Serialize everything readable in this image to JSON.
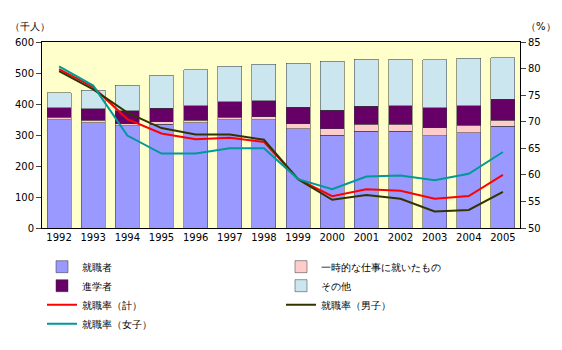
{
  "chart_data": {
    "type": "bar",
    "stacked": true,
    "grid": false,
    "legend": "bottom",
    "y_label": "（千人）",
    "y2_label": "（%）",
    "categories": [
      "1992",
      "1993",
      "1994",
      "1995",
      "1996",
      "1997",
      "1998",
      "1999",
      "2000",
      "2001",
      "2002",
      "2003",
      "2004",
      "2005"
    ],
    "ylim": [
      0,
      600
    ],
    "yticks": [
      0,
      100,
      200,
      300,
      400,
      500,
      600
    ],
    "y2lim": [
      50,
      85
    ],
    "y2ticks": [
      50,
      55,
      60,
      65,
      70,
      75,
      80,
      85
    ],
    "series": [
      {
        "name": "就職者",
        "type": "bar",
        "color": "#9999ff",
        "values": [
          350,
          340,
          330,
          335,
          340,
          350,
          350,
          320,
          300,
          312,
          312,
          298,
          307,
          328
        ]
      },
      {
        "name": "一時的な仕事に就いたもの",
        "type": "bar",
        "color": "#ffcccc",
        "values": [
          7,
          7,
          7,
          7,
          8,
          8,
          9,
          17,
          20,
          22,
          22,
          26,
          25,
          20
        ]
      },
      {
        "name": "進学者",
        "type": "bar",
        "color": "#660066",
        "values": [
          31,
          38,
          41,
          44,
          47,
          49,
          51,
          53,
          60,
          59,
          61,
          64,
          63,
          67
        ]
      },
      {
        "name": "その他",
        "type": "bar",
        "color": "#cce6f0",
        "values": [
          49,
          60,
          82,
          107,
          115,
          115,
          118,
          142,
          158,
          152,
          150,
          155,
          153,
          135
        ]
      },
      {
        "name": "就職率（計）",
        "type": "line",
        "axis": "y2",
        "color": "#ff0000",
        "values": [
          79.9,
          76.5,
          70.5,
          67.8,
          66.7,
          67.0,
          66.2,
          59.2,
          56.0,
          57.3,
          57.0,
          55.5,
          56.0,
          60.0
        ]
      },
      {
        "name": "就職率（男子）",
        "type": "line",
        "axis": "y2",
        "color": "#333300",
        "values": [
          79.5,
          76.1,
          71.7,
          68.8,
          67.6,
          67.6,
          66.6,
          59.2,
          55.3,
          56.2,
          55.5,
          53.1,
          53.4,
          56.8
        ]
      },
      {
        "name": "就職率（女子）",
        "type": "line",
        "axis": "y2",
        "color": "#009999",
        "values": [
          80.4,
          76.8,
          67.4,
          64.0,
          64.0,
          65.0,
          65.0,
          59.2,
          57.3,
          59.7,
          59.9,
          59.0,
          60.2,
          64.3
        ]
      }
    ]
  }
}
